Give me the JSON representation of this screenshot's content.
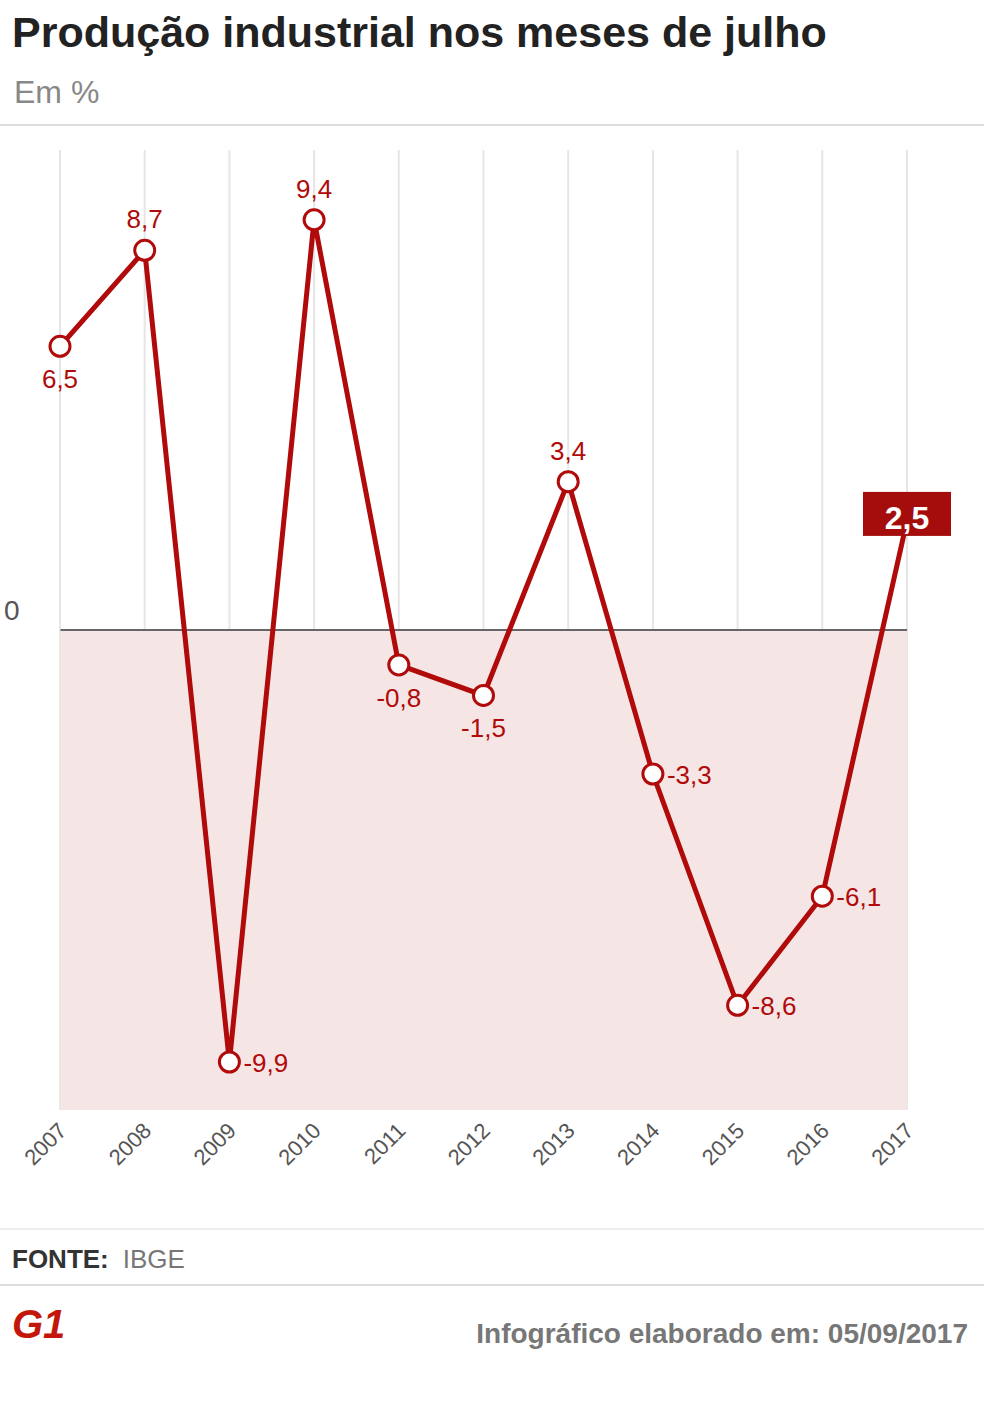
{
  "chart_data": {
    "type": "line",
    "title": "Produção industrial nos meses de julho",
    "subtitle": "Em %",
    "categories": [
      "2007",
      "2008",
      "2009",
      "2010",
      "2011",
      "2012",
      "2013",
      "2014",
      "2015",
      "2016",
      "2017"
    ],
    "values": [
      6.5,
      8.7,
      -9.9,
      9.4,
      -0.8,
      -1.5,
      3.4,
      -3.3,
      -8.6,
      -6.1,
      2.5
    ],
    "value_labels": [
      "6,5",
      "8,7",
      "-9,9",
      "9,4",
      "-0,8",
      "-1,5",
      "3,4",
      "-3,3",
      "-8,6",
      "-6,1",
      "2,5"
    ],
    "color": "#b00a0a",
    "ylim": [
      -11,
      11
    ],
    "yticks": [
      0
    ],
    "grid": true,
    "data_labels": true,
    "marker": "circle",
    "source_label": "FONTE:",
    "source": "IBGE",
    "logo": "G1",
    "note": "Infográfico elaborado em: 05/09/2017"
  }
}
